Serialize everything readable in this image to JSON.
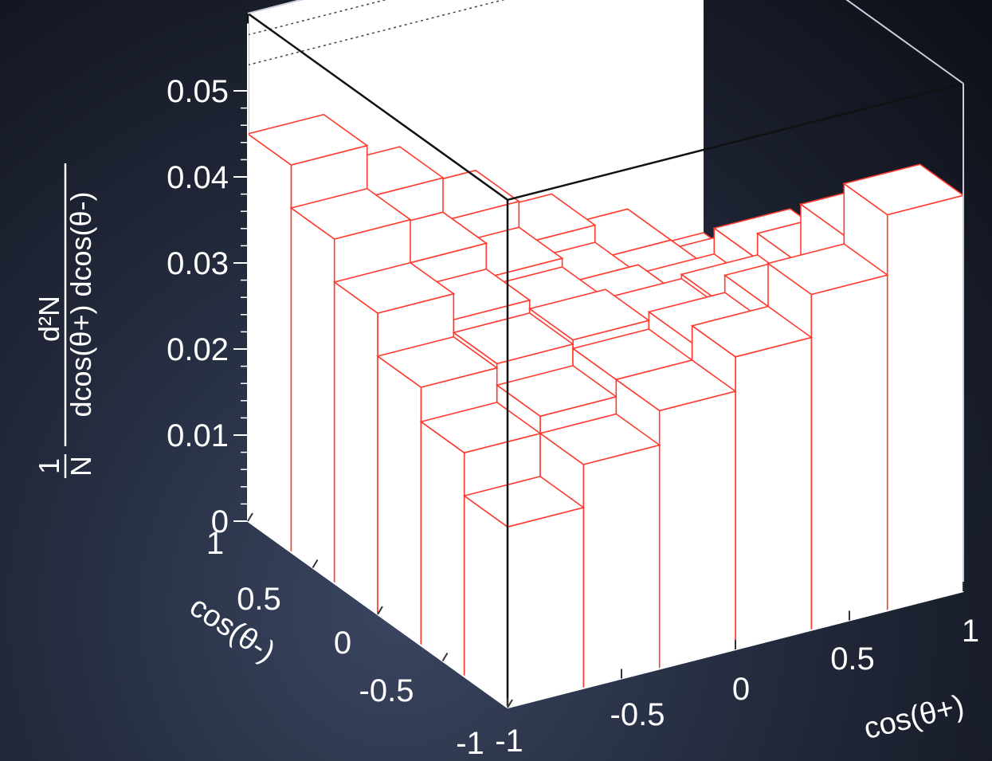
{
  "chart_data": {
    "type": "lego3d",
    "x_label": "cos(θ+)",
    "y_label": "cos(θ-)",
    "z_label_numerator": "d²N",
    "z_label_prefix": "1",
    "z_label_n": "N",
    "z_label_denominator": "dcos(θ+) dcos(θ-)",
    "x_range": [
      -1,
      1
    ],
    "y_range": [
      -1,
      1
    ],
    "z_range": [
      0,
      0.05
    ],
    "x_tick_labels": [
      "-1",
      "-0.5",
      "0",
      "0.5",
      "1"
    ],
    "y_tick_labels": [
      "-1",
      "-0.5",
      "0",
      "0.5",
      "1"
    ],
    "z_tick_labels": [
      "0",
      "0.01",
      "0.02",
      "0.03",
      "0.04",
      "0.05"
    ],
    "bin_centers": [
      -0.8333,
      -0.5,
      -0.1667,
      0.1667,
      0.5,
      0.8333
    ],
    "values": [
      [
        0.021,
        0.026,
        0.03,
        0.034,
        0.039,
        0.046
      ],
      [
        0.026,
        0.028,
        0.03,
        0.032,
        0.034,
        0.04
      ],
      [
        0.03,
        0.0305,
        0.031,
        0.03,
        0.0305,
        0.033
      ],
      [
        0.035,
        0.032,
        0.03,
        0.028,
        0.027,
        0.03
      ],
      [
        0.04,
        0.035,
        0.031,
        0.027,
        0.025,
        0.024
      ],
      [
        0.045,
        0.039,
        0.034,
        0.029,
        0.025,
        0.02
      ]
    ],
    "bar_color": "#ff3b30",
    "face_color": "#ffffff",
    "grid": false
  }
}
